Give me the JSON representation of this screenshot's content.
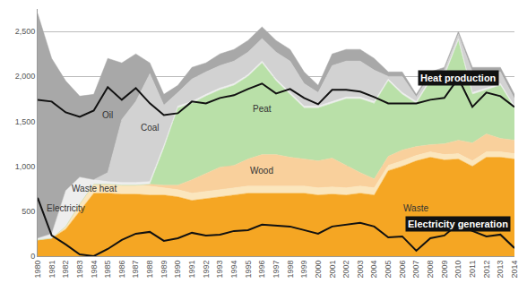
{
  "chart_data": {
    "type": "area",
    "stacked": true,
    "grid": true,
    "x": [
      1980,
      1981,
      1982,
      1983,
      1984,
      1985,
      1986,
      1987,
      1988,
      1989,
      1990,
      1991,
      1992,
      1993,
      1994,
      1995,
      1996,
      1997,
      1998,
      1999,
      2000,
      2001,
      2002,
      2003,
      2004,
      2005,
      2006,
      2007,
      2008,
      2009,
      2010,
      2011,
      2012,
      2013,
      2014
    ],
    "xlim": [
      1980,
      2014
    ],
    "xticks": [
      1980,
      1981,
      1982,
      1983,
      1984,
      1985,
      1986,
      1987,
      1988,
      1989,
      1990,
      1991,
      1992,
      1993,
      1994,
      1995,
      1996,
      1997,
      1998,
      1999,
      2000,
      2001,
      2002,
      2003,
      2004,
      2005,
      2006,
      2007,
      2008,
      2009,
      2010,
      2011,
      2012,
      2013,
      2014
    ],
    "ylim": [
      0,
      2750
    ],
    "yticks": [
      0,
      500,
      {
        "value": 1000,
        "label": "1,000"
      },
      {
        "value": 1500,
        "label": "1,500"
      },
      {
        "value": 2000,
        "label": "2,000"
      },
      {
        "value": 2500,
        "label": "2,500"
      }
    ],
    "series": [
      {
        "name": "Waste",
        "color": "#f5a623",
        "values": [
          180,
          200,
          300,
          500,
          700,
          700,
          690,
          690,
          680,
          680,
          660,
          620,
          640,
          660,
          680,
          700,
          700,
          700,
          700,
          700,
          680,
          690,
          680,
          700,
          680,
          950,
          1000,
          1060,
          1100,
          1070,
          1080,
          1000,
          1100,
          1100,
          1080
        ]
      },
      {
        "name": "Waste heat",
        "color": "#fbe6bd",
        "values": [
          0,
          0,
          30,
          80,
          100,
          100,
          100,
          100,
          100,
          80,
          80,
          80,
          80,
          80,
          80,
          80,
          80,
          80,
          80,
          80,
          80,
          80,
          80,
          80,
          80,
          60,
          60,
          60,
          60,
          60,
          60,
          60,
          60,
          60,
          60
        ]
      },
      {
        "name": "Wood",
        "color": "#f9d09c",
        "values": [
          0,
          0,
          0,
          0,
          0,
          0,
          0,
          0,
          20,
          30,
          50,
          150,
          200,
          250,
          250,
          300,
          350,
          350,
          320,
          300,
          300,
          320,
          250,
          150,
          100,
          100,
          120,
          100,
          80,
          120,
          150,
          200,
          200,
          150,
          150
        ]
      },
      {
        "name": "Peat",
        "color": "#b9e0a8",
        "values": [
          0,
          0,
          0,
          0,
          0,
          0,
          0,
          0,
          0,
          410,
          860,
          850,
          860,
          860,
          890,
          920,
          1020,
          820,
          700,
          570,
          590,
          610,
          740,
          820,
          840,
          840,
          620,
          480,
          710,
          750,
          1110,
          540,
          490,
          590,
          360
        ]
      },
      {
        "name": "Electricity",
        "color": "#eeeeee",
        "values": [
          20,
          50,
          400,
          300,
          50,
          30,
          30,
          30,
          30,
          30,
          20,
          20,
          20,
          20,
          20,
          20,
          20,
          20,
          20,
          20,
          20,
          20,
          20,
          20,
          20,
          20,
          20,
          20,
          20,
          20,
          20,
          20,
          20,
          20,
          20
        ]
      },
      {
        "name": "Coal",
        "color": "#d2d2d2",
        "values": [
          0,
          0,
          0,
          0,
          0,
          100,
          700,
          900,
          1200,
          450,
          150,
          250,
          250,
          250,
          250,
          250,
          250,
          300,
          350,
          250,
          150,
          400,
          400,
          400,
          350,
          30,
          180,
          50,
          50,
          50,
          50,
          230,
          180,
          130,
          80
        ]
      },
      {
        "name": "Oil",
        "color": "#a8a8a8",
        "values": [
          2500,
          1950,
          1220,
          900,
          950,
          1270,
          630,
          530,
          120,
          120,
          80,
          130,
          100,
          130,
          130,
          130,
          130,
          130,
          130,
          130,
          80,
          130,
          130,
          130,
          130,
          50,
          50,
          30,
          30,
          30,
          30,
          50,
          50,
          50,
          50
        ]
      },
      {
        "name": "Heat production",
        "type": "line",
        "color": "#111111",
        "line_style": "solid",
        "values": [
          1740,
          1720,
          1600,
          1550,
          1620,
          1880,
          1740,
          1870,
          1700,
          1570,
          1590,
          1720,
          1700,
          1760,
          1790,
          1860,
          1920,
          1810,
          1860,
          1760,
          1690,
          1850,
          1850,
          1830,
          1770,
          1700,
          1700,
          1700,
          1740,
          1760,
          1980,
          1660,
          1820,
          1780,
          1660
        ]
      },
      {
        "name": "Electricity generation",
        "type": "line",
        "color": "#111111",
        "line_style": "solid",
        "values": [
          650,
          230,
          130,
          20,
          0,
          80,
          180,
          250,
          270,
          170,
          200,
          260,
          230,
          240,
          280,
          290,
          350,
          340,
          330,
          290,
          250,
          330,
          350,
          370,
          330,
          210,
          220,
          60,
          200,
          230,
          360,
          280,
          220,
          240,
          90
        ]
      }
    ]
  }
}
